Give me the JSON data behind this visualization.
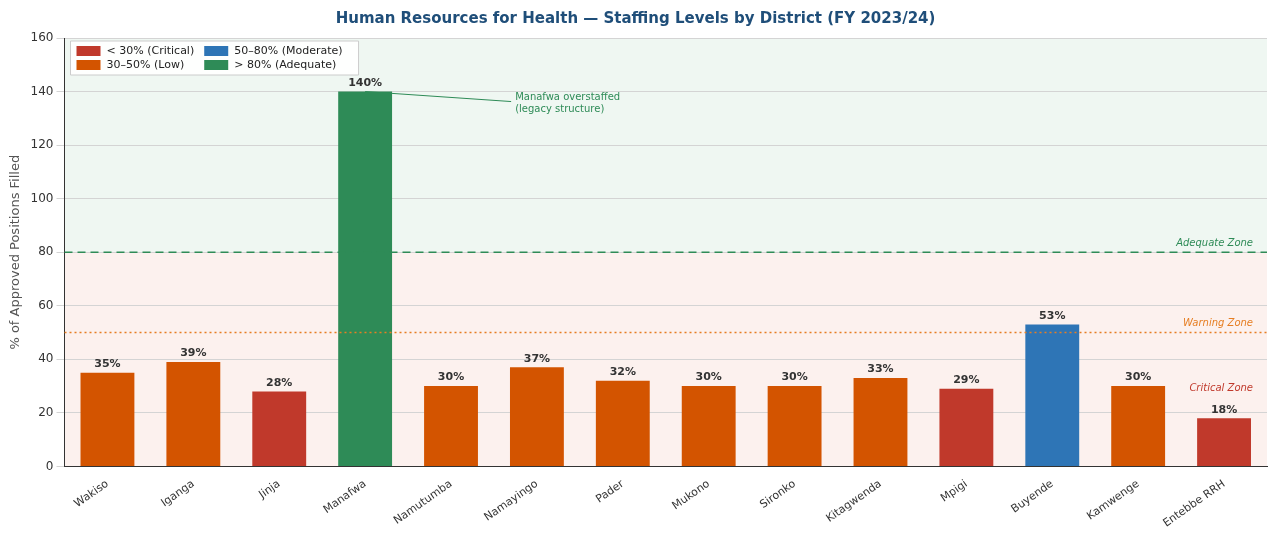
{
  "chart_data": {
    "type": "bar",
    "title": "Human Resources for Health — Staffing Levels by District (FY 2023/24)",
    "ylabel": "% of Approved Positions Filled",
    "categories": [
      "Wakiso",
      "Iganga",
      "Jinja",
      "Manafwa",
      "Namutumba",
      "Namayingo",
      "Pader",
      "Mukono",
      "Sironko",
      "Kitagwenda",
      "Mpigi",
      "Buyende",
      "Kamwenge",
      "Entebbe RRH"
    ],
    "stacked": true,
    "series": [
      {
        "name": "< 30% (Critical)",
        "color": "#c0392b",
        "values": [
          null,
          null,
          28,
          null,
          null,
          null,
          null,
          null,
          null,
          null,
          29,
          null,
          null,
          18
        ],
        "value_labels": [
          null,
          null,
          "28%",
          null,
          null,
          null,
          null,
          null,
          null,
          null,
          "29%",
          null,
          null,
          "18%"
        ]
      },
      {
        "name": "30–50% (Low)",
        "color": "#d35400",
        "values": [
          35,
          39,
          null,
          null,
          30,
          37,
          32,
          30,
          30,
          33,
          null,
          null,
          30,
          null
        ],
        "value_labels": [
          "35%",
          "39%",
          null,
          null,
          "30%",
          "37%",
          "32%",
          "30%",
          "30%",
          "33%",
          null,
          null,
          "30%",
          null
        ]
      },
      {
        "name": "50–80% (Moderate)",
        "color": "#2e75b6",
        "values": [
          null,
          null,
          null,
          null,
          null,
          null,
          null,
          null,
          null,
          null,
          null,
          53,
          null,
          null
        ],
        "value_labels": [
          null,
          null,
          null,
          null,
          null,
          null,
          null,
          null,
          null,
          null,
          null,
          "53%",
          null,
          null
        ]
      },
      {
        "name": "> 80% (Adequate)",
        "color": "#2e8b57",
        "values": [
          null,
          null,
          null,
          140,
          null,
          null,
          null,
          null,
          null,
          null,
          null,
          null,
          null,
          null
        ],
        "value_labels": [
          null,
          null,
          null,
          "140%",
          null,
          null,
          null,
          null,
          null,
          null,
          null,
          null,
          null,
          null
        ]
      }
    ],
    "ylim": [
      0,
      160
    ],
    "yticks": [
      0,
      20,
      40,
      60,
      80,
      100,
      120,
      140,
      160
    ],
    "grid": "y",
    "legend": "top left",
    "bands": [
      {
        "axis": "y",
        "from": 0,
        "to": 80,
        "color": "#fcf1ee"
      },
      {
        "axis": "y",
        "from": 80,
        "to": 160,
        "color": "#eff7f2"
      }
    ],
    "ref_lines": [
      {
        "axis": "y",
        "value": 80,
        "label": "Adequate Zone",
        "color": "#2e8b57",
        "line_style": "dashed"
      },
      {
        "axis": "y",
        "value": 50,
        "label": "Warning Zone",
        "color": "#e67e22",
        "line_style": "dotted"
      }
    ],
    "annotations": [
      {
        "text": "Manafwa overstaffed\n(legacy structure)",
        "x": "Manafwa",
        "y": 140
      },
      "Critical Zone"
    ]
  }
}
